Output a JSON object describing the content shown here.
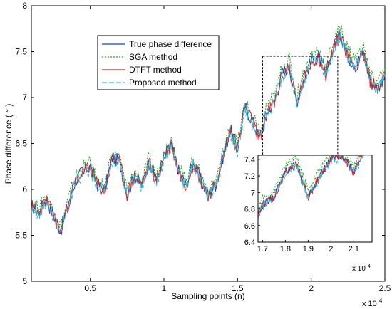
{
  "chart_data": {
    "type": "line",
    "xlabel": "Sampling points (n)",
    "ylabel": "Phase difference ( ° )",
    "x_multiplier_label": "x 10",
    "x_multiplier_exp": "4",
    "xlim": [
      1000,
      25000
    ],
    "ylim": [
      5,
      8
    ],
    "grid": false,
    "legend_position": "top-left",
    "x_ticks": [
      5000,
      10000,
      15000,
      20000,
      25000
    ],
    "x_tick_labels": [
      "0.5",
      "1",
      "1.5",
      "2",
      "2.5"
    ],
    "y_ticks": [
      5,
      5.5,
      6,
      6.5,
      7,
      7.5,
      8
    ],
    "y_tick_labels": [
      "5",
      "5.5",
      "6",
      "6.5",
      "7",
      "7.5",
      "8"
    ],
    "x": [
      1000,
      1500,
      2000,
      2500,
      3000,
      3500,
      4000,
      4500,
      5000,
      5500,
      6000,
      6500,
      7000,
      7500,
      8000,
      8500,
      9000,
      9500,
      10000,
      10500,
      11000,
      11500,
      12000,
      12500,
      13000,
      13500,
      14000,
      14500,
      15000,
      15500,
      16000,
      16500,
      17000,
      17500,
      18000,
      18500,
      19000,
      19500,
      20000,
      20500,
      21000,
      21500,
      22000,
      22500,
      23000,
      23500,
      24000,
      24500,
      25000
    ],
    "series": [
      {
        "name": "True phase difference",
        "color": "#1f3fbf",
        "style": "solid",
        "values": [
          5.82,
          5.75,
          5.9,
          5.72,
          5.55,
          5.85,
          6.1,
          6.2,
          6.25,
          6.05,
          6.0,
          6.35,
          6.3,
          5.95,
          6.15,
          6.05,
          6.3,
          6.1,
          6.35,
          6.5,
          6.2,
          6.05,
          6.3,
          6.1,
          5.95,
          6.05,
          6.35,
          6.65,
          6.45,
          6.9,
          6.75,
          6.55,
          6.85,
          6.95,
          7.25,
          7.35,
          6.95,
          7.2,
          7.4,
          7.45,
          7.25,
          7.55,
          7.7,
          7.45,
          7.35,
          7.5,
          7.2,
          7.1,
          7.25
        ]
      },
      {
        "name": "SGA method",
        "color": "#1a9e1a",
        "style": "dotted",
        "values": [
          5.86,
          5.79,
          5.94,
          5.76,
          5.59,
          5.89,
          6.14,
          6.24,
          6.29,
          6.09,
          6.04,
          6.39,
          6.34,
          5.99,
          6.19,
          6.09,
          6.34,
          6.14,
          6.39,
          6.54,
          6.24,
          6.09,
          6.34,
          6.14,
          5.99,
          6.09,
          6.39,
          6.69,
          6.49,
          6.94,
          6.8,
          6.61,
          6.92,
          7.02,
          7.32,
          7.42,
          7.02,
          7.27,
          7.47,
          7.52,
          7.32,
          7.62,
          7.76,
          7.52,
          7.42,
          7.57,
          7.27,
          7.17,
          7.31
        ]
      },
      {
        "name": "DTFT method",
        "color": "#e02020",
        "style": "solid",
        "values": [
          5.81,
          5.74,
          5.89,
          5.71,
          5.54,
          5.84,
          6.09,
          6.19,
          6.24,
          6.04,
          5.99,
          6.34,
          6.29,
          5.94,
          6.14,
          6.04,
          6.29,
          6.09,
          6.34,
          6.49,
          6.19,
          6.04,
          6.29,
          6.09,
          5.94,
          6.04,
          6.34,
          6.64,
          6.44,
          6.89,
          6.74,
          6.54,
          6.84,
          6.94,
          7.24,
          7.34,
          6.94,
          7.19,
          7.39,
          7.44,
          7.24,
          7.54,
          7.69,
          7.44,
          7.34,
          7.49,
          7.19,
          7.09,
          7.24
        ]
      },
      {
        "name": "Proposed method",
        "color": "#22c4d4",
        "style": "dashed",
        "values": [
          5.8,
          5.73,
          5.88,
          5.7,
          5.53,
          5.83,
          6.08,
          6.18,
          6.23,
          6.03,
          5.98,
          6.33,
          6.28,
          5.93,
          6.13,
          6.03,
          6.28,
          6.08,
          6.33,
          6.48,
          6.18,
          6.03,
          6.28,
          6.08,
          5.93,
          6.03,
          6.33,
          6.63,
          6.43,
          6.88,
          6.73,
          6.53,
          6.83,
          6.93,
          7.23,
          7.33,
          6.93,
          7.18,
          7.38,
          7.43,
          7.23,
          7.53,
          7.68,
          7.43,
          7.33,
          7.48,
          7.18,
          7.08,
          7.23
        ]
      }
    ],
    "inset": {
      "xlim": [
        16800,
        21800
      ],
      "ylim": [
        6.4,
        7.45
      ],
      "x_ticks": [
        17000,
        18000,
        19000,
        20000,
        21000
      ],
      "x_tick_labels": [
        "1.7",
        "1.8",
        "1.9",
        "2",
        "2.1"
      ],
      "y_ticks": [
        6.4,
        6.6,
        6.8,
        7.0,
        7.2,
        7.4
      ],
      "y_tick_labels": [
        "6.4",
        "6.6",
        "6.8",
        "7",
        "7.2",
        "7.4"
      ],
      "x_multiplier_label": "x 10",
      "x_multiplier_exp": "4",
      "zoom_box": {
        "x": [
          16700,
          21800
        ],
        "y": [
          6.2,
          7.45
        ]
      }
    }
  }
}
